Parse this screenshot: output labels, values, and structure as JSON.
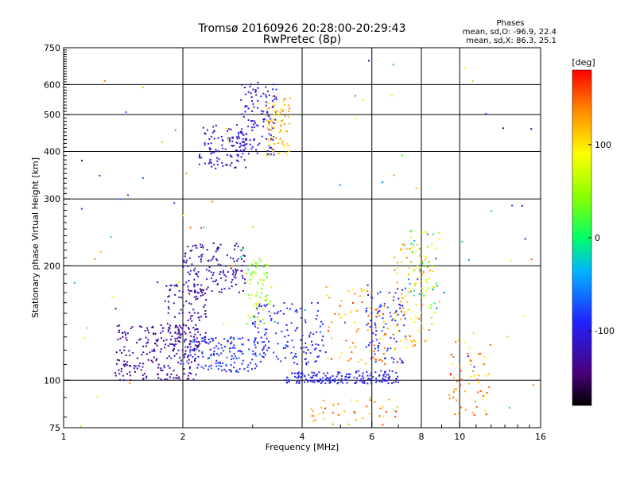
{
  "chart_data": {
    "type": "scatter",
    "title": "Tromsø 20160926 20:28:00-20:29:43",
    "subtitle": "RwPretec (8p)",
    "xlabel": "Frequency [MHz]",
    "ylabel": "Stationary phase Virtual Height [km]",
    "x_scale": "log",
    "y_scale": "log",
    "xlim": [
      1,
      16
    ],
    "ylim": [
      75,
      750
    ],
    "x_ticks": [
      "1",
      "2",
      "4",
      "6",
      "8",
      "10",
      "16"
    ],
    "y_ticks": [
      "75",
      "100",
      "200",
      "300",
      "400",
      "500",
      "600",
      "750"
    ],
    "x_grid": [
      2,
      4,
      6,
      8,
      10
    ],
    "y_grid": [
      100,
      200,
      300,
      400,
      500,
      600
    ],
    "grid": true,
    "phase_stats": {
      "heading": "Phases",
      "line_o": "mean, sd,O: -96.9, 22.4",
      "line_x": "mean, sd,X: 86.3, 25.1"
    },
    "colorbar": {
      "unit": "[deg]",
      "range": [
        -180,
        180
      ],
      "ticks": [
        "100",
        "0",
        "-100"
      ],
      "tick_values": [
        100,
        0,
        -100
      ]
    },
    "clusters": [
      {
        "x": [
          2.2,
          2.9
        ],
        "y": [
          360,
          470
        ],
        "n": 110,
        "phase": [
          -125,
          -95
        ]
      },
      {
        "x": [
          2.8,
          3.45
        ],
        "y": [
          390,
          610
        ],
        "n": 120,
        "phase": [
          -115,
          -90
        ]
      },
      {
        "x": [
          3.25,
          3.75
        ],
        "y": [
          390,
          560
        ],
        "n": 80,
        "phase": [
          95,
          140
        ]
      },
      {
        "x": [
          2.0,
          2.9
        ],
        "y": [
          170,
          230
        ],
        "n": 140,
        "phase": [
          -135,
          -105
        ]
      },
      {
        "x": [
          2.9,
          3.35
        ],
        "y": [
          140,
          210
        ],
        "n": 70,
        "phase": [
          10,
          90
        ]
      },
      {
        "x": [
          1.35,
          2.2
        ],
        "y": [
          100,
          140
        ],
        "n": 230,
        "phase": [
          -150,
          -110
        ]
      },
      {
        "x": [
          1.8,
          2.3
        ],
        "y": [
          120,
          180
        ],
        "n": 110,
        "phase": [
          -150,
          -110
        ]
      },
      {
        "x": [
          2.0,
          3.1
        ],
        "y": [
          105,
          130
        ],
        "n": 150,
        "phase": [
          -110,
          -60
        ]
      },
      {
        "x": [
          3.0,
          4.6
        ],
        "y": [
          110,
          160
        ],
        "n": 140,
        "phase": [
          -115,
          -75
        ]
      },
      {
        "x": [
          3.6,
          5.3
        ],
        "y": [
          98,
          105
        ],
        "n": 100,
        "phase": [
          -110,
          -80
        ]
      },
      {
        "x": [
          5.4,
          7.0
        ],
        "y": [
          98,
          106
        ],
        "n": 70,
        "phase": [
          -110,
          -80
        ]
      },
      {
        "x": [
          5.8,
          7.3
        ],
        "y": [
          110,
          180
        ],
        "n": 90,
        "phase": [
          -110,
          -70
        ]
      },
      {
        "x": [
          6.8,
          8.6
        ],
        "y": [
          120,
          230
        ],
        "n": 90,
        "phase": [
          70,
          160
        ]
      },
      {
        "x": [
          4.6,
          6.6
        ],
        "y": [
          110,
          180
        ],
        "n": 70,
        "phase": [
          90,
          170
        ]
      },
      {
        "x": [
          7.4,
          8.9
        ],
        "y": [
          150,
          250
        ],
        "n": 60,
        "phase": [
          -70,
          120
        ]
      },
      {
        "x": [
          9.4,
          12.0
        ],
        "y": [
          80,
          130
        ],
        "n": 60,
        "phase": [
          90,
          170
        ]
      },
      {
        "x": [
          4.2,
          7.0
        ],
        "y": [
          76,
          90
        ],
        "n": 40,
        "phase": [
          100,
          170
        ]
      },
      {
        "x": [
          1.0,
          16.0
        ],
        "y": [
          75,
          700
        ],
        "n": 90,
        "phase": [
          -150,
          160
        ]
      }
    ]
  }
}
